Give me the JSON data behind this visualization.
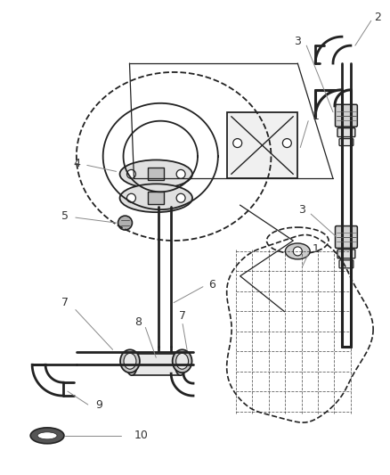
{
  "bg_color": "#ffffff",
  "line_color": "#222222",
  "label_color": "#333333",
  "label_fs": 8.5,
  "leader_color": "#888888"
}
